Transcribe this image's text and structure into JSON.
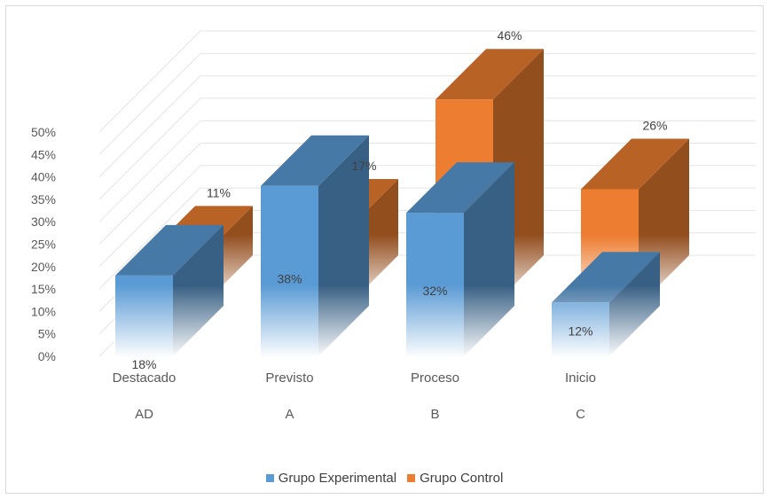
{
  "chart_data": {
    "type": "bar",
    "three_d": true,
    "categories": [
      {
        "name": "Destacado",
        "code": "AD"
      },
      {
        "name": "Previsto",
        "code": "A"
      },
      {
        "name": "Proceso",
        "code": "B"
      },
      {
        "name": "Inicio",
        "code": "C"
      }
    ],
    "series": [
      {
        "name": "Grupo Experimental",
        "color": "#5b9bd5",
        "values": [
          18,
          38,
          32,
          12
        ],
        "labels": [
          "18%",
          "38%",
          "32%",
          "12%"
        ]
      },
      {
        "name": "Grupo Control",
        "color": "#ed7d31",
        "values": [
          11,
          17,
          46,
          26
        ],
        "labels": [
          "11%",
          "17%",
          "46%",
          "26%"
        ]
      }
    ],
    "y_ticks": [
      "0%",
      "5%",
      "10%",
      "15%",
      "20%",
      "25%",
      "30%",
      "35%",
      "40%",
      "45%",
      "50%"
    ],
    "ylim": [
      0,
      50
    ],
    "y_unit": "%",
    "grid": true,
    "legend_position": "bottom"
  }
}
